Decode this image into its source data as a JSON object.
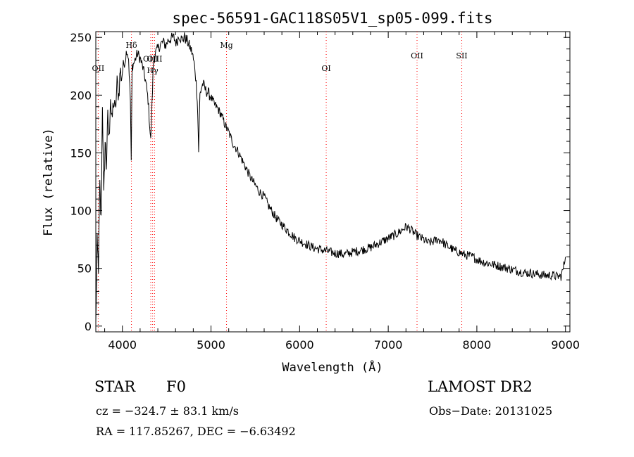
{
  "chart_data": {
    "type": "line",
    "title": "spec-56591-GAC118S05V1_sp05-099.fits",
    "xlabel": "Wavelength (Å)",
    "ylabel": "Flux (relative)",
    "xlim": [
      3700,
      9050
    ],
    "ylim": [
      -5,
      255
    ],
    "xticks": [
      4000,
      5000,
      6000,
      7000,
      8000,
      9000
    ],
    "yticks": [
      0,
      50,
      100,
      150,
      200,
      250
    ],
    "grid": false,
    "series": [
      {
        "x": [
          3700,
          3715,
          3730,
          3745,
          3760,
          3775,
          3790,
          3805,
          3820,
          3835,
          3850,
          3865,
          3880,
          3900,
          3920,
          3940,
          3960,
          3975,
          3990,
          4010,
          4030,
          4050,
          4070,
          4090,
          4100,
          4110,
          4130,
          4150,
          4170,
          4200,
          4230,
          4260,
          4290,
          4320,
          4340,
          4350,
          4370,
          4400,
          4430,
          4460,
          4490,
          4520,
          4550,
          4580,
          4610,
          4640,
          4670,
          4700,
          4730,
          4760,
          4790,
          4820,
          4845,
          4861,
          4875,
          4890,
          4910,
          4940,
          4970,
          5000,
          5040,
          5080,
          5120,
          5160,
          5200,
          5250,
          5300,
          5350,
          5400,
          5450,
          5500,
          5550,
          5600,
          5650,
          5700,
          5750,
          5800,
          5850,
          5900,
          5950,
          6000,
          6050,
          6100,
          6150,
          6200,
          6250,
          6300,
          6350,
          6400,
          6450,
          6500,
          6550,
          6600,
          6650,
          6700,
          6750,
          6800,
          6850,
          6900,
          6950,
          7000,
          7050,
          7100,
          7150,
          7200,
          7250,
          7300,
          7350,
          7400,
          7450,
          7500,
          7550,
          7600,
          7650,
          7700,
          7750,
          7800,
          7850,
          7900,
          7950,
          8000,
          8050,
          8100,
          8150,
          8200,
          8250,
          8300,
          8350,
          8400,
          8450,
          8500,
          8550,
          8600,
          8650,
          8700,
          8750,
          8800,
          8850,
          8900,
          8950,
          8975,
          9000
        ],
        "y": [
          0,
          70,
          52,
          120,
          90,
          195,
          110,
          160,
          140,
          180,
          160,
          200,
          175,
          195,
          185,
          210,
          200,
          222,
          215,
          226,
          230,
          240,
          232,
          195,
          140,
          225,
          228,
          232,
          236,
          232,
          224,
          213,
          196,
          160,
          205,
          228,
          236,
          240,
          244,
          246,
          243,
          248,
          249,
          250,
          245,
          252,
          248,
          250,
          247,
          242,
          236,
          222,
          198,
          152,
          200,
          206,
          210,
          204,
          202,
          198,
          192,
          188,
          182,
          174,
          168,
          158,
          152,
          144,
          136,
          128,
          122,
          116,
          112,
          104,
          98,
          92,
          88,
          84,
          80,
          76,
          74,
          72,
          70,
          68,
          67,
          66,
          65,
          64,
          63,
          63,
          62,
          63,
          64,
          65,
          66,
          67,
          68,
          70,
          72,
          74,
          76,
          78,
          80,
          83,
          86,
          84,
          80,
          77,
          75,
          72,
          73,
          75,
          74,
          70,
          68,
          65,
          64,
          62,
          61,
          60,
          58,
          56,
          55,
          54,
          53,
          52,
          51,
          50,
          49,
          48,
          47,
          46,
          46,
          45,
          45,
          44,
          44,
          44,
          43,
          43,
          50,
          60
        ]
      }
    ],
    "line_markers": [
      {
        "label": "OII",
        "x": 3727,
        "label_y": 221
      },
      {
        "label": "Hδ",
        "x": 4102,
        "label_y": 241
      },
      {
        "label": "OIII",
        "x": 4320,
        "label_y": 229
      },
      {
        "label": "Hγ",
        "x": 4341,
        "label_y": 219
      },
      {
        "label": "OIII",
        "x": 4363,
        "label_y": 229
      },
      {
        "label": "Mg",
        "x": 5175,
        "label_y": 241
      },
      {
        "label": "OI",
        "x": 6300,
        "label_y": 221
      },
      {
        "label": "OII",
        "x": 7325,
        "label_y": 232
      },
      {
        "label": "SII",
        "x": 7830,
        "label_y": 232
      }
    ]
  },
  "footer": {
    "object_class": "STAR",
    "subclass": "F0",
    "survey": "LAMOST DR2",
    "cz": "cz = −324.7 ± 83.1 km/s",
    "obs_date": "Obs−Date: 20131025",
    "radec": "RA = 117.85267, DEC =  −6.63492"
  },
  "colors": {
    "axes": "#000000",
    "spectrum": "#000000",
    "marker_line": "#ff0000"
  }
}
